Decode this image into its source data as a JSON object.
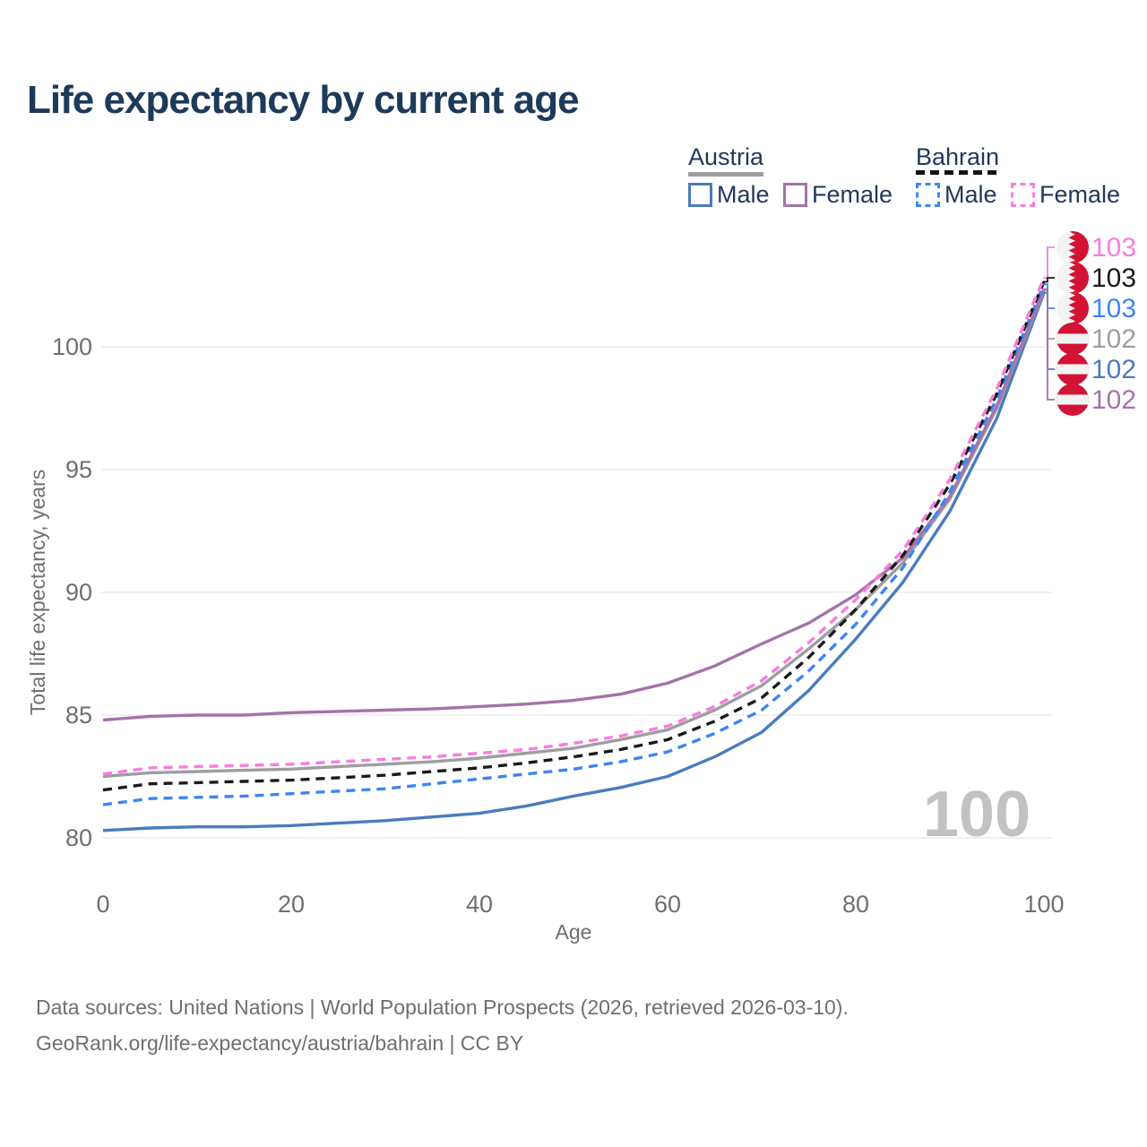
{
  "title": "Life expectancy by current age",
  "legend": {
    "groups": [
      {
        "label": "Austria",
        "line_style": "solid",
        "line_color": "#9e9e9e",
        "items": [
          {
            "label": "Male",
            "color": "#4a7cbe",
            "style": "solid"
          },
          {
            "label": "Female",
            "color": "#a572aa",
            "style": "solid"
          }
        ]
      },
      {
        "label": "Bahrain",
        "line_style": "dashed",
        "line_color": "#141414",
        "items": [
          {
            "label": "Male",
            "color": "#3d85f5",
            "style": "dashed"
          },
          {
            "label": "Female",
            "color": "#fb7be0",
            "style": "dashed"
          }
        ]
      }
    ]
  },
  "footer": {
    "line1": "Data sources: United Nations | World Population Prospects (2026, retrieved 2026-03-10).",
    "line2": "GeoRank.org/life-expectancy/austria/bahrain | CC BY"
  },
  "chart_data": {
    "type": "line",
    "title": "Life expectancy by current age",
    "xlabel": "Age",
    "ylabel": "Total life expectancy, years",
    "xticks": [
      0,
      20,
      40,
      60,
      80,
      100
    ],
    "yticks": [
      80,
      85,
      90,
      95,
      100
    ],
    "xlim": [
      0,
      100
    ],
    "ylim": [
      79,
      103.5
    ],
    "grid": true,
    "legend_position": "top-right",
    "watermark": "100",
    "x": [
      0,
      5,
      10,
      15,
      20,
      25,
      30,
      35,
      40,
      45,
      50,
      55,
      60,
      65,
      70,
      75,
      80,
      85,
      90,
      95,
      100
    ],
    "series": [
      {
        "id": "austria_male",
        "name": "Austria Male",
        "country": "Austria",
        "sex": "Male",
        "color": "#4a7cbe",
        "dash": "solid",
        "values": [
          80.3,
          80.4,
          80.45,
          80.45,
          80.5,
          80.6,
          80.7,
          80.85,
          81.0,
          81.3,
          81.7,
          82.05,
          82.5,
          83.3,
          84.3,
          86.0,
          88.1,
          90.4,
          93.3,
          97.1,
          102.2
        ]
      },
      {
        "id": "austria_both",
        "name": "Austria Both sexes",
        "country": "Austria",
        "sex": "Both",
        "color": "#9e9e9e",
        "dash": "solid",
        "values": [
          82.5,
          82.65,
          82.7,
          82.75,
          82.8,
          82.9,
          83.0,
          83.1,
          83.25,
          83.45,
          83.65,
          84.0,
          84.4,
          85.2,
          86.2,
          87.7,
          89.3,
          91.2,
          93.8,
          97.5,
          102.3
        ]
      },
      {
        "id": "austria_female",
        "name": "Austria Female",
        "country": "Austria",
        "sex": "Female",
        "color": "#a572aa",
        "dash": "solid",
        "values": [
          84.8,
          84.95,
          85.0,
          85.0,
          85.1,
          85.15,
          85.2,
          85.25,
          85.35,
          85.45,
          85.6,
          85.85,
          86.3,
          87.0,
          87.9,
          88.75,
          89.9,
          91.4,
          93.9,
          97.6,
          102.35
        ]
      },
      {
        "id": "bahrain_male",
        "name": "Bahrain Male",
        "country": "Bahrain",
        "sex": "Male",
        "color": "#3d85f5",
        "dash": "dashed",
        "values": [
          81.35,
          81.6,
          81.65,
          81.7,
          81.8,
          81.9,
          82.0,
          82.2,
          82.4,
          82.6,
          82.8,
          83.1,
          83.5,
          84.25,
          85.2,
          86.8,
          88.7,
          91.0,
          94.1,
          97.9,
          102.55
        ]
      },
      {
        "id": "bahrain_both",
        "name": "Bahrain Both sexes",
        "country": "Bahrain",
        "sex": "Both",
        "color": "#1a1a1a",
        "dash": "dashed",
        "values": [
          81.95,
          82.2,
          82.25,
          82.3,
          82.35,
          82.45,
          82.55,
          82.7,
          82.85,
          83.05,
          83.3,
          83.6,
          84.0,
          84.75,
          85.7,
          87.35,
          89.3,
          91.5,
          94.4,
          98.1,
          102.65
        ]
      },
      {
        "id": "bahrain_female",
        "name": "Bahrain Female",
        "country": "Bahrain",
        "sex": "Female",
        "color": "#fb7be0",
        "dash": "dashed",
        "values": [
          82.6,
          82.85,
          82.9,
          82.95,
          83.0,
          83.1,
          83.2,
          83.3,
          83.45,
          83.6,
          83.85,
          84.15,
          84.55,
          85.35,
          86.4,
          87.95,
          89.7,
          91.7,
          94.6,
          98.3,
          102.8
        ]
      }
    ],
    "callouts": [
      {
        "series": "bahrain_female",
        "label": "103",
        "flag": "bahrain",
        "color": "#fb7be0"
      },
      {
        "series": "bahrain_both",
        "label": "103",
        "flag": "bahrain",
        "color": "#1a1a1a"
      },
      {
        "series": "bahrain_male",
        "label": "103",
        "flag": "bahrain",
        "color": "#3d85f5"
      },
      {
        "series": "austria_both",
        "label": "102",
        "flag": "austria",
        "color": "#9e9e9e"
      },
      {
        "series": "austria_male",
        "label": "102",
        "flag": "austria",
        "color": "#4a7cbe"
      },
      {
        "series": "austria_female",
        "label": "102",
        "flag": "austria",
        "color": "#a572aa"
      }
    ],
    "flag_colors": {
      "red": "#d21333",
      "white": "#f3f3f3"
    },
    "axis_text_color": "#6f6f6f",
    "grid_color": "#ebebeb",
    "watermark_color": "#c2c2c2"
  }
}
